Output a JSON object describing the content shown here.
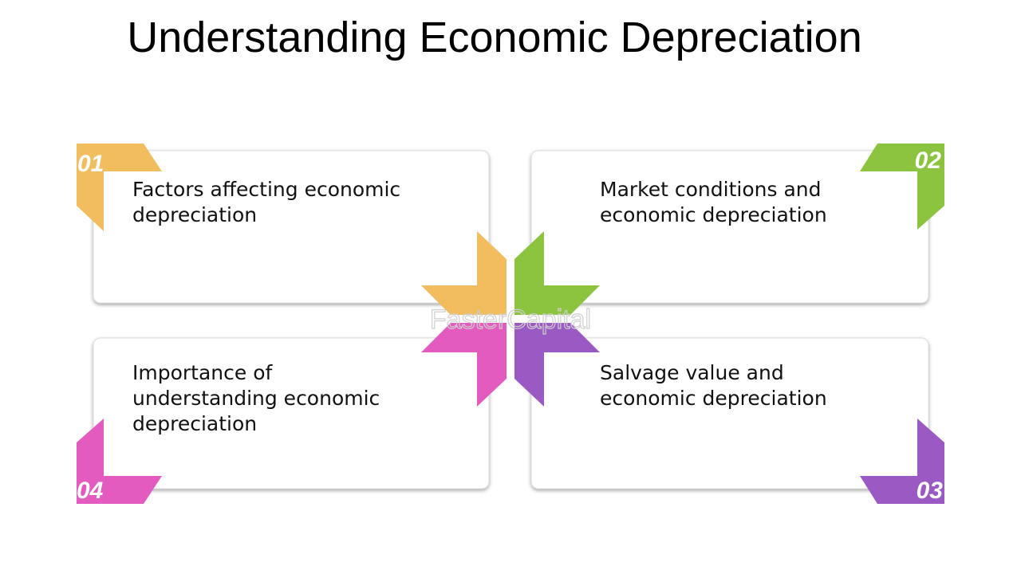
{
  "title": "Understanding Economic Depreciation",
  "watermark": "FasterCapital",
  "items": [
    {
      "number": "01",
      "lines": [
        "Factors affecting economic",
        "depreciation"
      ]
    },
    {
      "number": "02",
      "lines": [
        "Market conditions and",
        "economic depreciation"
      ]
    },
    {
      "number": "03",
      "lines": [
        "Salvage value and",
        "economic depreciation"
      ]
    },
    {
      "number": "04",
      "lines": [
        "Importance of",
        "understanding economic",
        "depreciation"
      ]
    }
  ]
}
